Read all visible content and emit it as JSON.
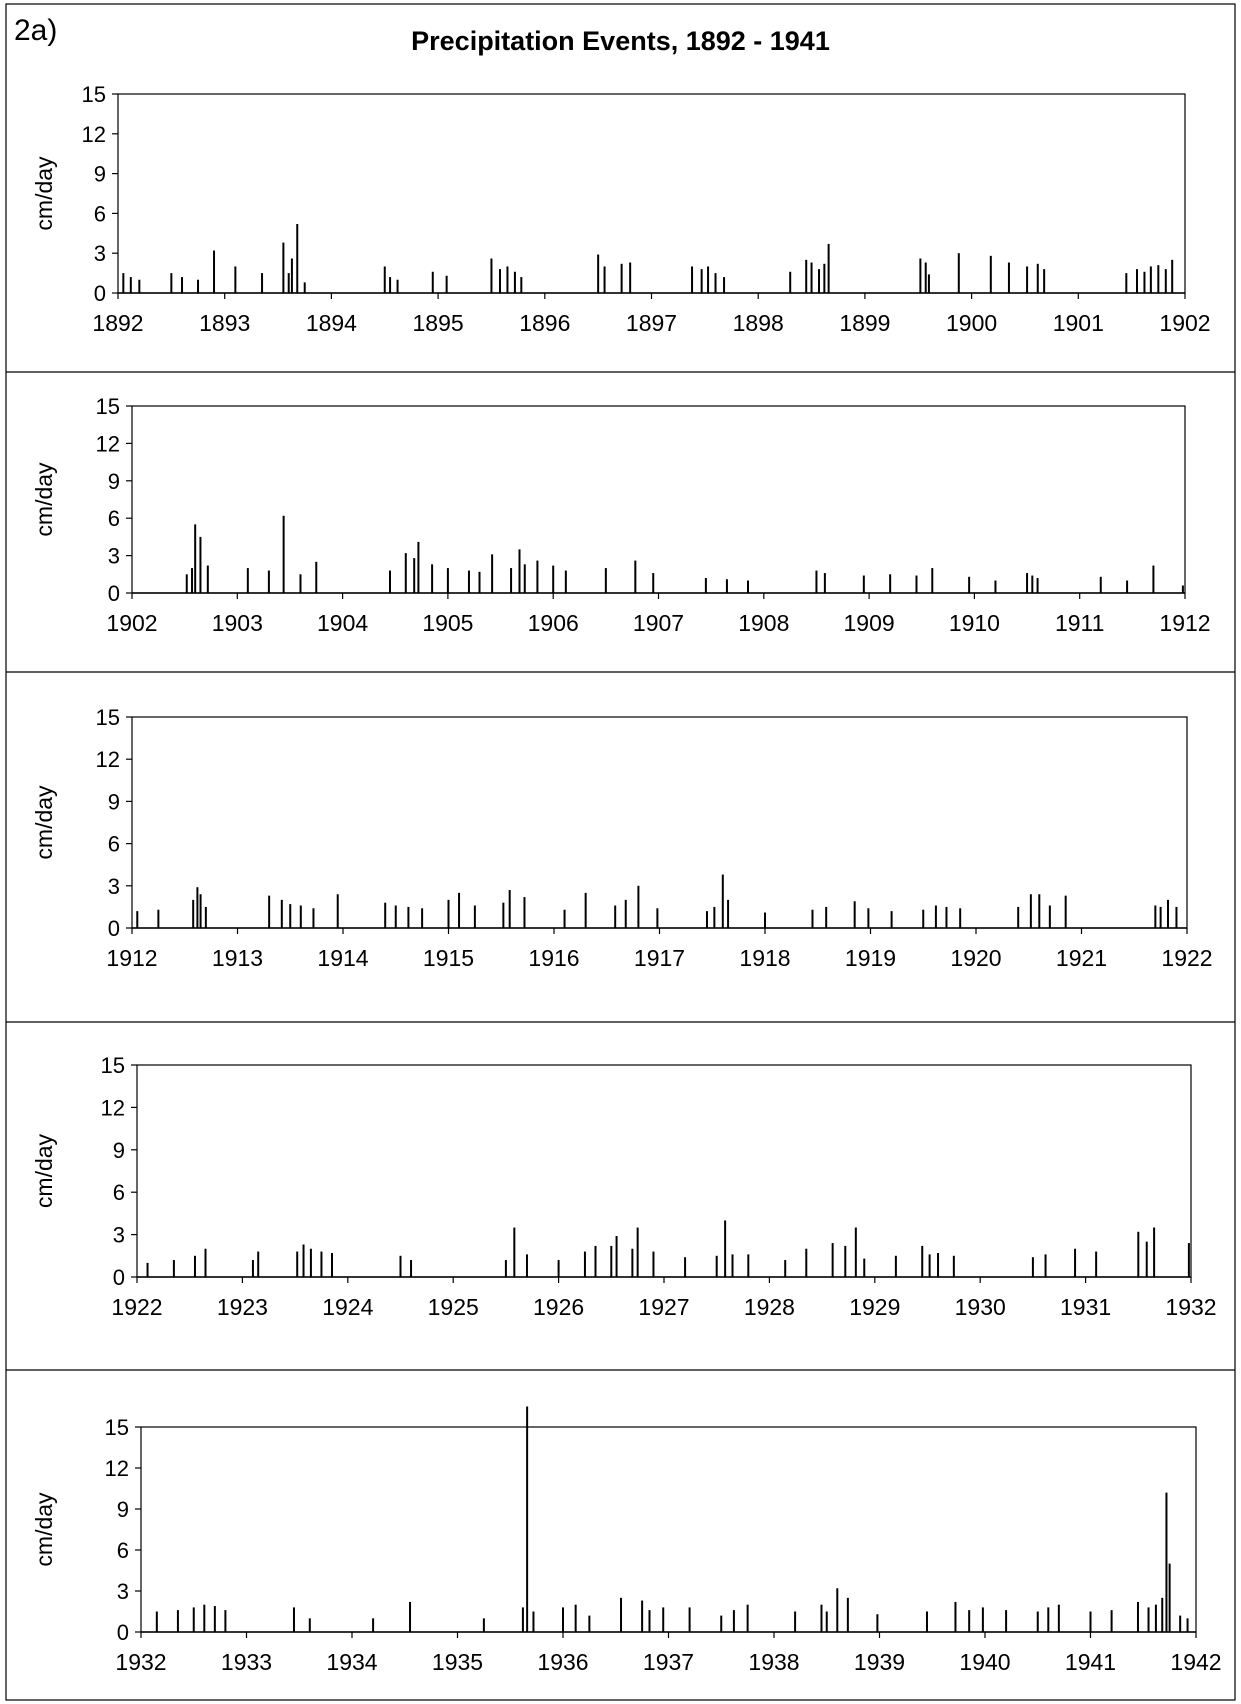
{
  "figure_label": "2a)",
  "title": "Precipitation Events, 1892 - 1941",
  "chart_data": [
    {
      "type": "bar",
      "ylabel": "cm/day",
      "ylim": [
        0,
        15
      ],
      "yticks": [
        0,
        3,
        6,
        9,
        12,
        15
      ],
      "xlim": [
        1892,
        1902
      ],
      "xticks": [
        "1892",
        "1893",
        "1894",
        "1895",
        "1896",
        "1897",
        "1898",
        "1899",
        "1900",
        "1901",
        "1902"
      ],
      "x": [
        1892.05,
        1892.12,
        1892.2,
        1892.5,
        1892.6,
        1892.75,
        1892.9,
        1893.1,
        1893.35,
        1893.55,
        1893.6,
        1893.63,
        1893.68,
        1893.75,
        1894.5,
        1894.55,
        1894.62,
        1894.95,
        1895.08,
        1895.5,
        1895.58,
        1895.65,
        1895.72,
        1895.78,
        1896.5,
        1896.56,
        1896.72,
        1896.8,
        1897.38,
        1897.47,
        1897.53,
        1897.6,
        1897.68,
        1898.3,
        1898.45,
        1898.5,
        1898.57,
        1898.62,
        1898.66,
        1899.52,
        1899.57,
        1899.6,
        1899.88,
        1900.18,
        1900.35,
        1900.52,
        1900.62,
        1900.68,
        1901.45,
        1901.55,
        1901.62,
        1901.68,
        1901.75,
        1901.82,
        1901.88
      ],
      "values": [
        1.5,
        1.2,
        1.0,
        1.5,
        1.2,
        1.0,
        3.2,
        2.0,
        1.5,
        3.8,
        1.5,
        2.6,
        5.2,
        0.8,
        2.0,
        1.2,
        1.0,
        1.6,
        1.3,
        2.6,
        1.8,
        2.0,
        1.6,
        1.2,
        2.9,
        2.0,
        2.2,
        2.3,
        2.0,
        1.8,
        2.0,
        1.5,
        1.2,
        1.6,
        2.5,
        2.3,
        1.8,
        2.2,
        3.7,
        2.6,
        2.3,
        1.4,
        3.0,
        2.8,
        2.3,
        2.0,
        2.2,
        1.8,
        1.5,
        1.8,
        1.6,
        2.0,
        2.1,
        1.8,
        2.5
      ]
    },
    {
      "type": "bar",
      "ylabel": "cm/day",
      "ylim": [
        0,
        15
      ],
      "yticks": [
        0,
        3,
        6,
        9,
        12,
        15
      ],
      "xlim": [
        1902,
        1912
      ],
      "xticks": [
        "1902",
        "1903",
        "1904",
        "1905",
        "1906",
        "1907",
        "1908",
        "1909",
        "1910",
        "1911",
        "1912"
      ],
      "x": [
        1902.52,
        1902.57,
        1902.6,
        1902.65,
        1902.72,
        1903.1,
        1903.3,
        1903.44,
        1903.6,
        1903.75,
        1904.45,
        1904.6,
        1904.68,
        1904.72,
        1904.85,
        1905.0,
        1905.2,
        1905.3,
        1905.42,
        1905.6,
        1905.68,
        1905.73,
        1905.85,
        1906.0,
        1906.12,
        1906.5,
        1906.78,
        1906.95,
        1907.45,
        1907.65,
        1907.85,
        1908.5,
        1908.58,
        1908.95,
        1909.2,
        1909.45,
        1909.6,
        1909.95,
        1910.2,
        1910.5,
        1910.55,
        1910.6,
        1911.2,
        1911.45,
        1911.7,
        1911.98
      ],
      "values": [
        1.5,
        2.0,
        5.5,
        4.5,
        2.2,
        2.0,
        1.8,
        6.2,
        1.5,
        2.5,
        1.8,
        3.2,
        2.8,
        4.1,
        2.3,
        2.0,
        1.8,
        1.7,
        3.1,
        2.0,
        3.5,
        2.3,
        2.6,
        2.2,
        1.8,
        2.0,
        2.6,
        1.6,
        1.2,
        1.1,
        1.0,
        1.8,
        1.6,
        1.4,
        1.5,
        1.4,
        2.0,
        1.3,
        1.0,
        1.6,
        1.4,
        1.2,
        1.3,
        1.0,
        2.2,
        0.6
      ]
    },
    {
      "type": "bar",
      "ylabel": "cm/day",
      "ylim": [
        0,
        15
      ],
      "yticks": [
        0,
        3,
        6,
        9,
        12,
        15
      ],
      "xlim": [
        1912,
        1922
      ],
      "xticks": [
        "1912",
        "1913",
        "1914",
        "1915",
        "1916",
        "1917",
        "1918",
        "1919",
        "1920",
        "1921",
        "1922"
      ],
      "x": [
        1912.05,
        1912.25,
        1912.58,
        1912.62,
        1912.65,
        1912.7,
        1913.3,
        1913.42,
        1913.5,
        1913.6,
        1913.72,
        1913.95,
        1914.4,
        1914.5,
        1914.62,
        1914.75,
        1915.0,
        1915.1,
        1915.25,
        1915.52,
        1915.58,
        1915.72,
        1916.1,
        1916.3,
        1916.58,
        1916.68,
        1916.8,
        1916.98,
        1917.45,
        1917.52,
        1917.6,
        1917.65,
        1918.0,
        1918.45,
        1918.58,
        1918.85,
        1918.98,
        1919.2,
        1919.5,
        1919.62,
        1919.72,
        1919.85,
        1920.4,
        1920.52,
        1920.6,
        1920.7,
        1920.85,
        1921.7,
        1921.75,
        1921.82,
        1921.9
      ],
      "values": [
        1.2,
        1.3,
        2.0,
        2.9,
        2.4,
        1.5,
        2.3,
        2.0,
        1.7,
        1.6,
        1.4,
        2.4,
        1.8,
        1.6,
        1.5,
        1.4,
        2.0,
        2.5,
        1.6,
        1.8,
        2.7,
        2.2,
        1.3,
        2.5,
        1.6,
        2.0,
        3.0,
        1.4,
        1.2,
        1.5,
        3.8,
        2.0,
        1.1,
        1.3,
        1.5,
        1.9,
        1.4,
        1.2,
        1.3,
        1.6,
        1.5,
        1.4,
        1.5,
        2.4,
        2.4,
        1.6,
        2.3,
        1.6,
        1.5,
        2.0,
        1.5
      ]
    },
    {
      "type": "bar",
      "ylabel": "cm/day",
      "ylim": [
        0,
        15
      ],
      "yticks": [
        0,
        3,
        6,
        9,
        12,
        15
      ],
      "xlim": [
        1922,
        1932
      ],
      "xticks": [
        "1922",
        "1923",
        "1924",
        "1925",
        "1926",
        "1927",
        "1928",
        "1929",
        "1930",
        "1931",
        "1932"
      ],
      "x": [
        1922.1,
        1922.35,
        1922.55,
        1922.65,
        1923.1,
        1923.15,
        1923.52,
        1923.58,
        1923.65,
        1923.75,
        1923.85,
        1924.5,
        1924.6,
        1925.5,
        1925.58,
        1925.7,
        1926.0,
        1926.25,
        1926.35,
        1926.5,
        1926.55,
        1926.7,
        1926.75,
        1926.9,
        1927.2,
        1927.5,
        1927.58,
        1927.65,
        1927.8,
        1928.15,
        1928.35,
        1928.6,
        1928.72,
        1928.82,
        1928.9,
        1929.2,
        1929.45,
        1929.52,
        1929.6,
        1929.75,
        1930.5,
        1930.62,
        1930.9,
        1931.1,
        1931.5,
        1931.58,
        1931.65,
        1931.98
      ],
      "values": [
        1.0,
        1.2,
        1.5,
        2.0,
        1.2,
        1.8,
        1.8,
        2.3,
        2.0,
        1.8,
        1.7,
        1.5,
        1.2,
        1.2,
        3.5,
        1.6,
        1.2,
        1.8,
        2.2,
        2.2,
        2.9,
        2.0,
        3.5,
        1.8,
        1.4,
        1.5,
        4.0,
        1.6,
        1.6,
        1.2,
        2.0,
        2.4,
        2.2,
        3.5,
        1.3,
        1.5,
        2.2,
        1.6,
        1.7,
        1.5,
        1.4,
        1.6,
        2.0,
        1.8,
        3.2,
        2.5,
        3.5,
        2.4
      ]
    },
    {
      "type": "bar",
      "ylabel": "cm/day",
      "ylim": [
        0,
        15
      ],
      "yticks": [
        0,
        3,
        6,
        9,
        12,
        15
      ],
      "xlim": [
        1932,
        1942
      ],
      "xticks": [
        "1932",
        "1933",
        "1934",
        "1935",
        "1936",
        "1937",
        "1938",
        "1939",
        "1940",
        "1941",
        "1942"
      ],
      "x": [
        1932.15,
        1932.35,
        1932.5,
        1932.6,
        1932.7,
        1932.8,
        1933.45,
        1933.6,
        1934.2,
        1934.55,
        1935.25,
        1935.62,
        1935.66,
        1935.72,
        1936.0,
        1936.12,
        1936.25,
        1936.55,
        1936.75,
        1936.82,
        1936.95,
        1937.2,
        1937.5,
        1937.62,
        1937.75,
        1938.2,
        1938.45,
        1938.5,
        1938.6,
        1938.7,
        1938.98,
        1939.45,
        1939.72,
        1939.85,
        1939.98,
        1940.2,
        1940.5,
        1940.6,
        1940.7,
        1941.0,
        1941.2,
        1941.45,
        1941.55,
        1941.62,
        1941.68,
        1941.72,
        1941.75,
        1941.85,
        1941.92
      ],
      "values": [
        1.5,
        1.6,
        1.8,
        2.0,
        1.9,
        1.6,
        1.8,
        1.0,
        1.0,
        2.2,
        1.0,
        1.8,
        16.5,
        1.5,
        1.8,
        2.0,
        1.2,
        2.5,
        2.3,
        1.6,
        1.8,
        1.8,
        1.2,
        1.6,
        2.0,
        1.5,
        2.0,
        1.5,
        3.2,
        2.5,
        1.3,
        1.5,
        2.2,
        1.6,
        1.8,
        1.6,
        1.5,
        1.8,
        2.0,
        1.5,
        1.6,
        2.2,
        1.8,
        2.0,
        2.5,
        10.2,
        5.0,
        1.2,
        1.0
      ]
    }
  ]
}
